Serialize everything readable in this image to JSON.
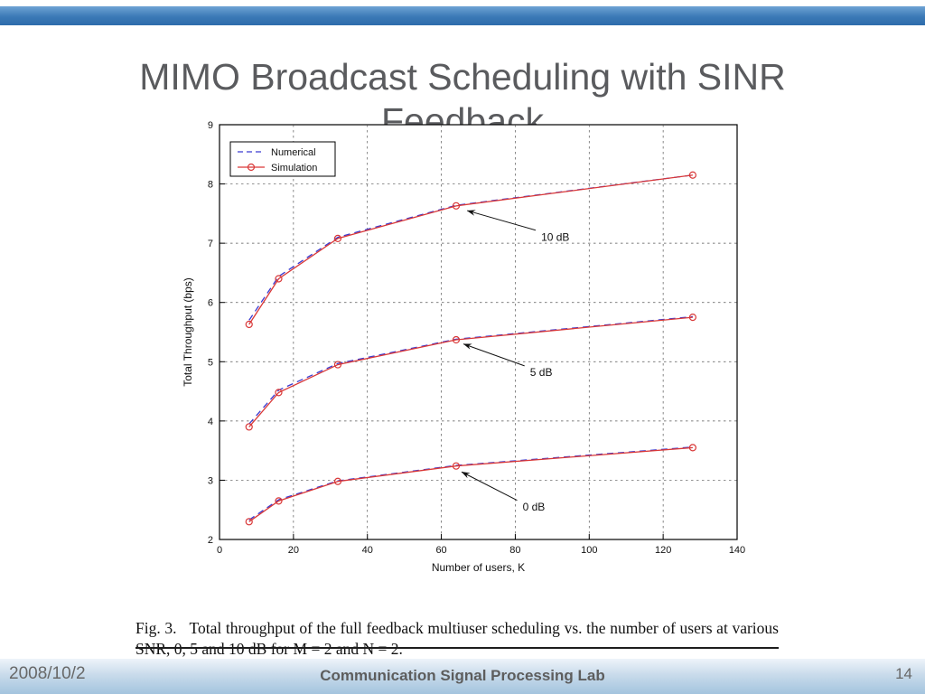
{
  "slide": {
    "title": "MIMO Broadcast Scheduling with SINR Feedback",
    "caption": {
      "label": "Fig. 3.",
      "text": "Total throughput of the full feedback multiuser scheduling vs. the number of users at various SNR, 0, 5 and 10 dB for M = 2 and N = 2."
    },
    "footer": {
      "date": "2008/10/2",
      "center": "Communication Signal Processing Lab",
      "page_number": "14"
    }
  },
  "colors": {
    "numerical": "#3a3ad0",
    "simulation": "#d93838",
    "grid": "#555555",
    "accent_bar": "#2e6cab"
  },
  "chart_data": {
    "type": "line",
    "title": "",
    "xlabel": "Number of users, K",
    "ylabel": "Total Throughput (bps)",
    "xlim": [
      0,
      140
    ],
    "ylim": [
      2,
      9
    ],
    "xticks": [
      0,
      20,
      40,
      60,
      80,
      100,
      120,
      140
    ],
    "yticks": [
      2,
      3,
      4,
      5,
      6,
      7,
      8,
      9
    ],
    "grid": true,
    "legend": [
      "Numerical",
      "Simulation"
    ],
    "legend_position": "upper-left",
    "x": [
      8,
      16,
      32,
      64,
      128
    ],
    "groups": [
      {
        "snr": "10 dB",
        "numerical": [
          5.7,
          6.44,
          7.1,
          7.64,
          8.15
        ],
        "simulation": [
          5.63,
          6.4,
          7.08,
          7.63,
          8.15
        ]
      },
      {
        "snr": "5 dB",
        "numerical": [
          3.95,
          4.52,
          4.97,
          5.38,
          5.76
        ],
        "simulation": [
          3.9,
          4.48,
          4.95,
          5.37,
          5.75
        ]
      },
      {
        "snr": "0 dB",
        "numerical": [
          2.33,
          2.67,
          2.99,
          3.25,
          3.56
        ],
        "simulation": [
          2.3,
          2.65,
          2.98,
          3.24,
          3.55
        ]
      }
    ],
    "annotations": [
      {
        "label": "10 dB",
        "text_at": [
          87.0,
          7.1
        ],
        "tail": [
          85.5,
          7.22
        ],
        "head": [
          67.0,
          7.55
        ]
      },
      {
        "label": "5 dB",
        "text_at": [
          84.0,
          4.82
        ],
        "tail": [
          82.5,
          4.93
        ],
        "head": [
          66.0,
          5.3
        ]
      },
      {
        "label": "0 dB",
        "text_at": [
          82.0,
          2.55
        ],
        "tail": [
          80.5,
          2.66
        ],
        "head": [
          65.5,
          3.14
        ]
      }
    ]
  }
}
